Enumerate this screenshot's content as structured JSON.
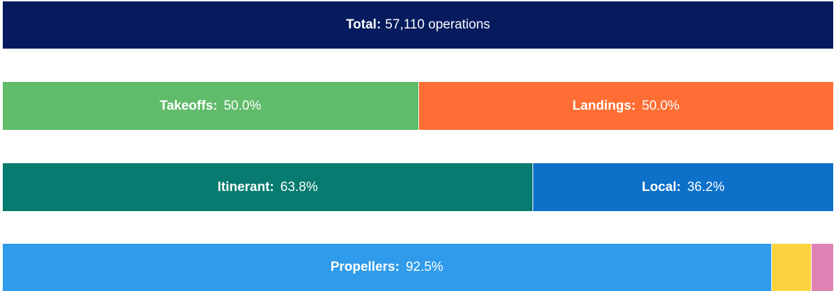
{
  "chart_data": {
    "type": "stacked-bar",
    "total_label": "Total:",
    "total_value": "57,110 operations",
    "rows": [
      {
        "series": [
          {
            "name": "Takeoffs:",
            "color": "#60bb6a",
            "value": 50.0,
            "value_label": "50.0%"
          },
          {
            "name": "Landings:",
            "color": "#fe6d33",
            "value": 50.0,
            "value_label": "50.0%"
          }
        ]
      },
      {
        "series": [
          {
            "name": "Itinerant:",
            "color": "#077b70",
            "value": 63.8,
            "value_label": "63.8%"
          },
          {
            "name": "Local:",
            "color": "#0d70c9",
            "value": 36.2,
            "value_label": "36.2%"
          }
        ]
      },
      {
        "series": [
          {
            "name": "Propellers:",
            "color": "#2f9bea",
            "value": 92.5,
            "value_label": "92.5%"
          },
          {
            "color": "#fdd33f",
            "value": 4.8
          },
          {
            "color": "#e083b4",
            "value": 2.7
          }
        ]
      }
    ]
  }
}
